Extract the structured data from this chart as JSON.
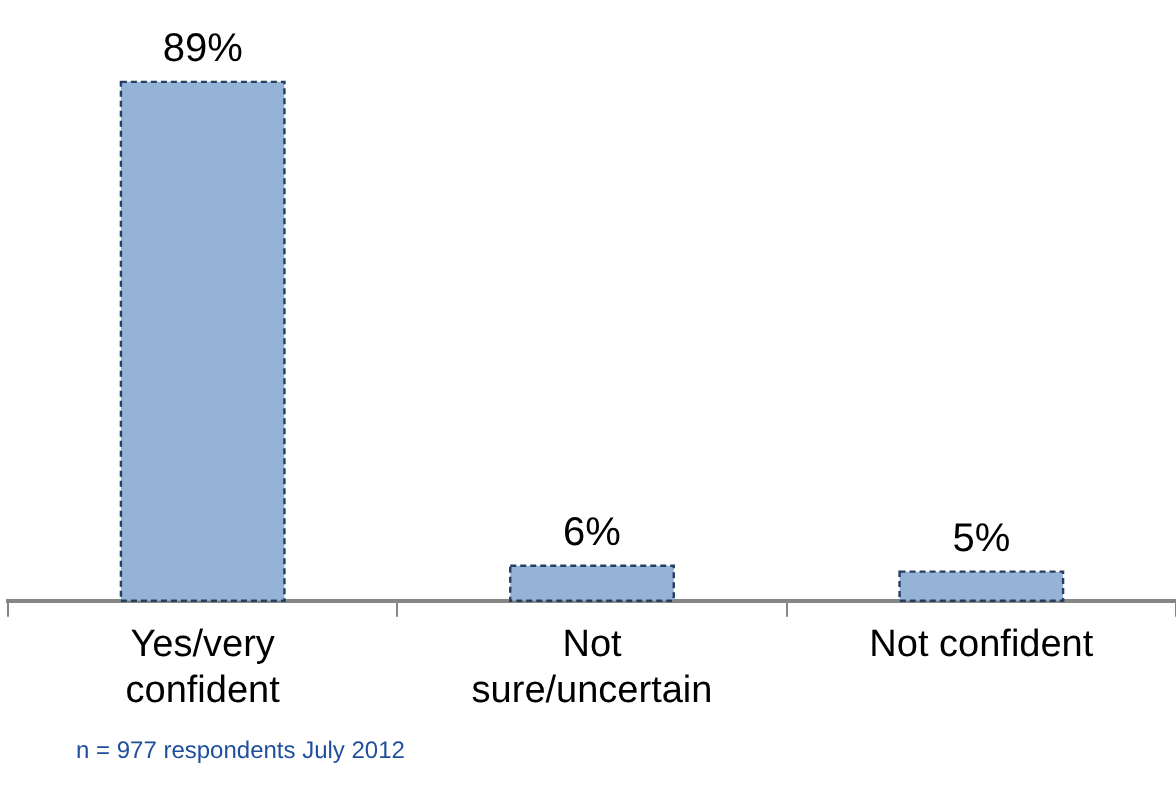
{
  "chart_data": {
    "type": "bar",
    "categories": [
      "Yes/very\nconfident",
      "Not\nsure/uncertain",
      "Not confident"
    ],
    "values": [
      89,
      6,
      5
    ],
    "value_labels": [
      "89%",
      "6%",
      "5%"
    ],
    "color": "#95b3d7",
    "grid": false,
    "legend": false,
    "annotations": [
      "n = 977 respondents July 2012"
    ]
  }
}
